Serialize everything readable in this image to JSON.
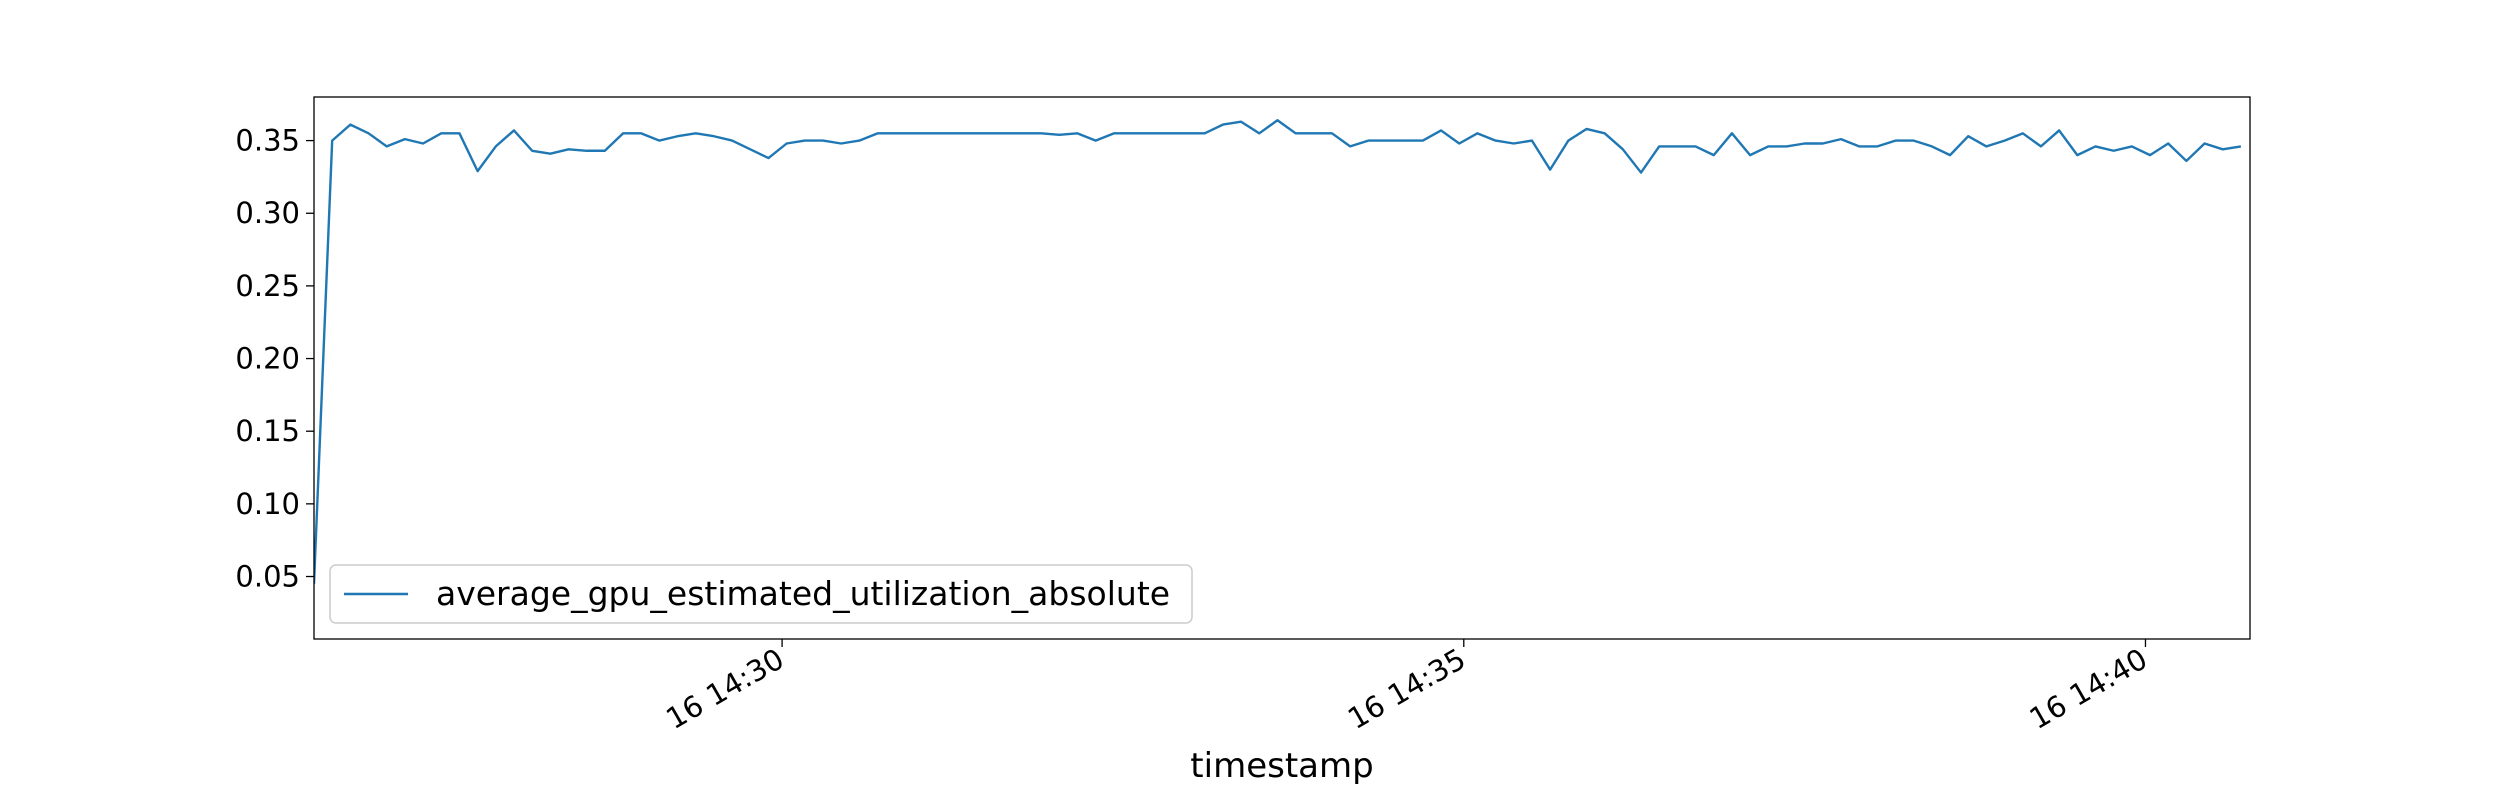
{
  "chart_data": {
    "type": "line",
    "xlabel": "timestamp",
    "x": [
      "16 14:26:34",
      "16 14:26:42",
      "16 14:26:50",
      "16 14:26:58",
      "16 14:27:06",
      "16 14:27:14",
      "16 14:27:22",
      "16 14:27:30",
      "16 14:27:38",
      "16 14:27:46",
      "16 14:27:54",
      "16 14:28:02",
      "16 14:28:10",
      "16 14:28:18",
      "16 14:28:26",
      "16 14:28:34",
      "16 14:28:42",
      "16 14:28:50",
      "16 14:28:58",
      "16 14:29:06",
      "16 14:29:14",
      "16 14:29:22",
      "16 14:29:30",
      "16 14:29:38",
      "16 14:29:46",
      "16 14:29:54",
      "16 14:30:02",
      "16 14:30:10",
      "16 14:30:18",
      "16 14:30:26",
      "16 14:30:34",
      "16 14:30:42",
      "16 14:30:50",
      "16 14:30:58",
      "16 14:31:06",
      "16 14:31:14",
      "16 14:31:22",
      "16 14:31:30",
      "16 14:31:38",
      "16 14:31:46",
      "16 14:31:54",
      "16 14:32:02",
      "16 14:32:10",
      "16 14:32:18",
      "16 14:32:26",
      "16 14:32:34",
      "16 14:32:42",
      "16 14:32:50",
      "16 14:32:58",
      "16 14:33:06",
      "16 14:33:14",
      "16 14:33:22",
      "16 14:33:30",
      "16 14:33:38",
      "16 14:33:46",
      "16 14:33:54",
      "16 14:34:02",
      "16 14:34:10",
      "16 14:34:18",
      "16 14:34:26",
      "16 14:34:34",
      "16 14:34:42",
      "16 14:34:50",
      "16 14:34:58",
      "16 14:35:06",
      "16 14:35:14",
      "16 14:35:22",
      "16 14:35:30",
      "16 14:35:38",
      "16 14:35:46",
      "16 14:35:54",
      "16 14:36:02",
      "16 14:36:10",
      "16 14:36:18",
      "16 14:36:26",
      "16 14:36:34",
      "16 14:36:42",
      "16 14:36:50",
      "16 14:36:58",
      "16 14:37:06",
      "16 14:37:14",
      "16 14:37:22",
      "16 14:37:30",
      "16 14:37:38",
      "16 14:37:46",
      "16 14:37:54",
      "16 14:38:02",
      "16 14:38:10",
      "16 14:38:18",
      "16 14:38:26",
      "16 14:38:34",
      "16 14:38:42",
      "16 14:38:50",
      "16 14:38:58",
      "16 14:39:06",
      "16 14:39:14",
      "16 14:39:22",
      "16 14:39:30",
      "16 14:39:38",
      "16 14:39:46",
      "16 14:39:54",
      "16 14:40:02",
      "16 14:40:10",
      "16 14:40:18",
      "16 14:40:26",
      "16 14:40:34",
      "16 14:40:42"
    ],
    "series": [
      {
        "name": "average_gpu_estimated_utilization_absolute",
        "color": "#1f77b4",
        "values": [
          0.045,
          0.35,
          0.361,
          0.355,
          0.346,
          0.351,
          0.348,
          0.355,
          0.355,
          0.329,
          0.346,
          0.357,
          0.343,
          0.341,
          0.344,
          0.343,
          0.343,
          0.355,
          0.355,
          0.35,
          0.353,
          0.355,
          0.353,
          0.35,
          0.344,
          0.338,
          0.348,
          0.35,
          0.35,
          0.348,
          0.35,
          0.355,
          0.355,
          0.355,
          0.355,
          0.355,
          0.355,
          0.355,
          0.355,
          0.355,
          0.355,
          0.354,
          0.355,
          0.35,
          0.355,
          0.355,
          0.355,
          0.355,
          0.355,
          0.355,
          0.361,
          0.363,
          0.355,
          0.364,
          0.355,
          0.355,
          0.355,
          0.346,
          0.35,
          0.35,
          0.35,
          0.35,
          0.357,
          0.348,
          0.355,
          0.35,
          0.348,
          0.35,
          0.33,
          0.35,
          0.358,
          0.355,
          0.344,
          0.328,
          0.346,
          0.346,
          0.346,
          0.34,
          0.355,
          0.34,
          0.346,
          0.346,
          0.348,
          0.348,
          0.351,
          0.346,
          0.346,
          0.35,
          0.35,
          0.346,
          0.34,
          0.353,
          0.346,
          0.35,
          0.355,
          0.346,
          0.357,
          0.34,
          0.346,
          0.343,
          0.346,
          0.34,
          0.348,
          0.336,
          0.348,
          0.344,
          0.346
        ]
      }
    ],
    "xlim": [
      "16 14:26:34",
      "16 14:40:46"
    ],
    "xticks": [
      "16 14:30",
      "16 14:35",
      "16 14:40"
    ],
    "ylim": [
      0.007,
      0.38
    ],
    "yticks": [
      0.05,
      {
        "value": 0.1,
        "label": "0.10"
      },
      0.15,
      {
        "value": 0.2,
        "label": "0.20"
      },
      0.25,
      {
        "value": 0.3,
        "label": "0.30"
      },
      0.35
    ],
    "legend": "lower left",
    "grid": false
  }
}
